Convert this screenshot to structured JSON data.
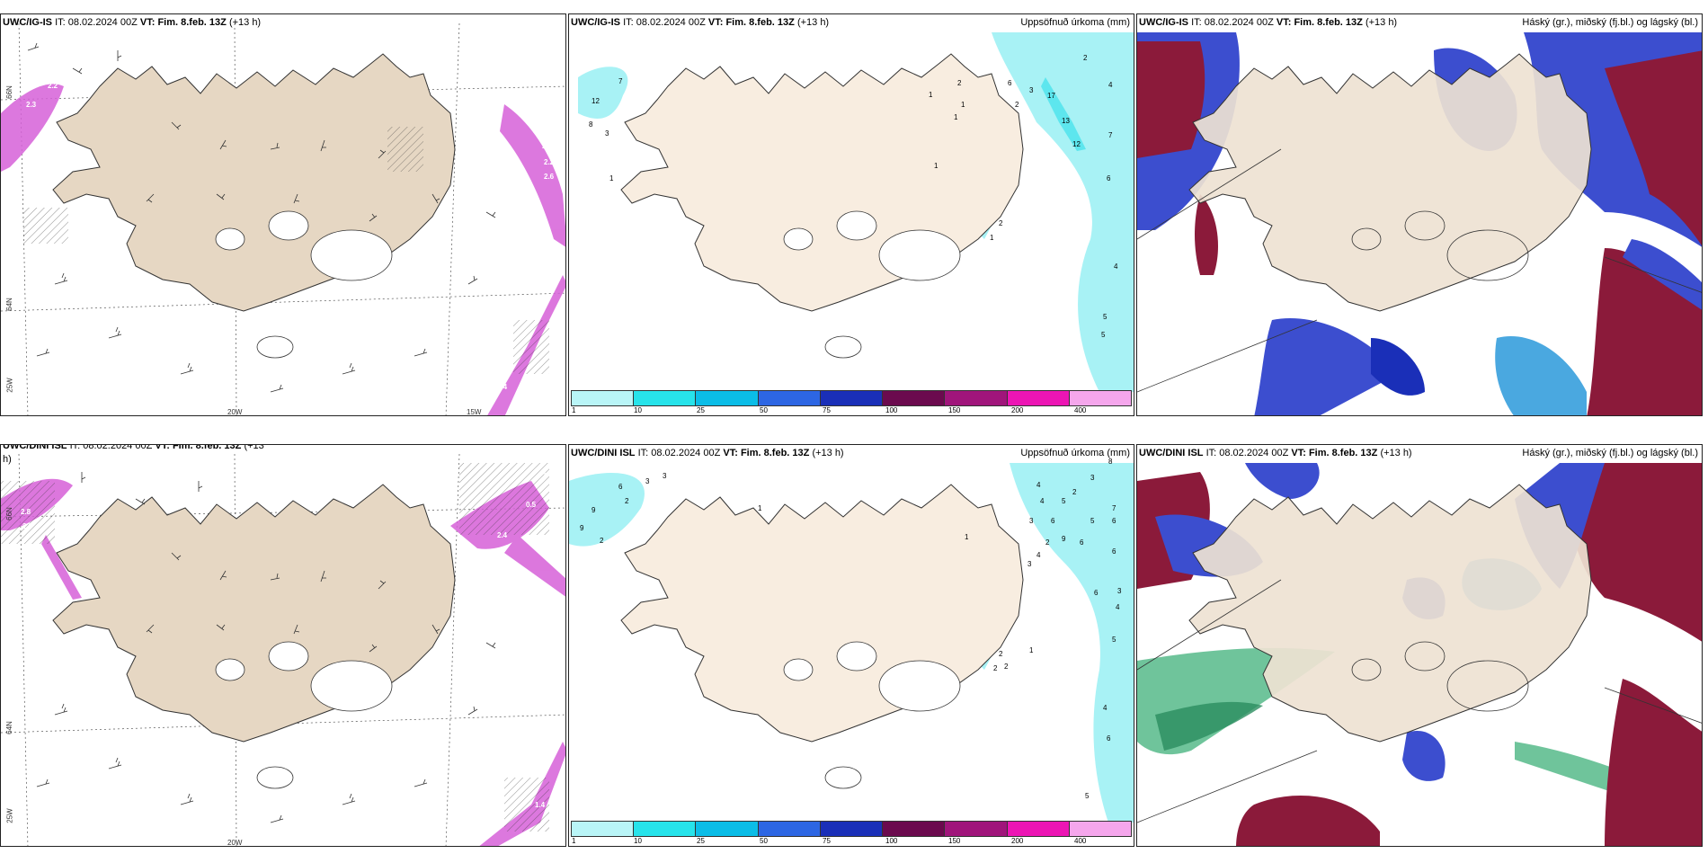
{
  "colors": {
    "land": "#eee2d2",
    "land_alt": "#f8ede0",
    "coast": "#333333",
    "precip_light": "#a8f2f5",
    "precip_mid": "#5de6ee",
    "snow": "#d660d8",
    "cloud_high": "#8b1a3a",
    "cloud_mid": "#3c4ecf",
    "cloud_low": "#4aa8e0",
    "fog_green": "#3fb07a"
  },
  "colorbar": {
    "colors": [
      "#b9f5f7",
      "#27e3ea",
      "#0bbde7",
      "#2d66e3",
      "#1a2fb8",
      "#6b0a4e",
      "#a0157b",
      "#ec15b4",
      "#f5a6ec"
    ],
    "ticks": [
      "1",
      "10",
      "25",
      "50",
      "75",
      "100",
      "150",
      "200",
      "400"
    ]
  },
  "panels": [
    {
      "model": "UWC/IG-IS",
      "it_label": "IT:",
      "it_value": "08.02.2024 00Z",
      "vt_label": "VT:",
      "vt_value": "Fim. 8.feb. 13Z",
      "lead": "(+13 h)",
      "right_title": "",
      "axis_labels": [
        "66N",
        "64N",
        "25W",
        "20W",
        "15W"
      ],
      "numbers": [
        "2.2",
        "2.3",
        "2.0",
        "2.2",
        "2.6",
        "2.4",
        "1.3"
      ]
    },
    {
      "model": "UWC/IG-IS",
      "it_label": "IT:",
      "it_value": "08.02.2024 00Z",
      "vt_label": "VT:",
      "vt_value": "Fim. 8.feb. 13Z",
      "lead": "(+13 h)",
      "right_title": "Uppsöfnuð úrkoma (mm)",
      "numbers": [
        "7",
        "12",
        "8",
        "3",
        "1",
        "2",
        "1",
        "1",
        "1",
        "6",
        "2",
        "3",
        "17",
        "13",
        "12",
        "2",
        "4",
        "7",
        "6",
        "1",
        "2",
        "1",
        "4",
        "5",
        "5"
      ]
    },
    {
      "model": "UWC/IG-IS",
      "it_label": "IT:",
      "it_value": "08.02.2024 00Z",
      "vt_label": "VT:",
      "vt_value": "Fim. 8.feb. 13Z",
      "lead": "(+13 h)",
      "right_title": "Háský (gr.), miðský (fj.bl.) og lágský (bl.)"
    },
    {
      "model": "UWC/DINI ISL",
      "it_label": "IT:",
      "it_value": "08.02.2024 00Z",
      "vt_label": "VT:",
      "vt_value": "Fim. 8.feb. 13Z",
      "lead": "(+13",
      "lead_wrap": "h)",
      "right_title": "",
      "axis_labels": [
        "66N",
        "64N",
        "25W",
        "20W"
      ],
      "numbers": [
        "2.8",
        "2.8",
        "2.4",
        "0.5",
        "3",
        "1.4"
      ]
    },
    {
      "model": "UWC/DINI ISL",
      "it_label": "IT:",
      "it_value": "08.02.2024 00Z",
      "vt_label": "VT:",
      "vt_value": "Fim. 8.feb. 13Z",
      "lead": "(+13 h)",
      "right_title": "Uppsöfnuð úrkoma (mm)",
      "numbers": [
        "6",
        "3",
        "3",
        "9",
        "2",
        "9",
        "2",
        "1",
        "8",
        "3",
        "4",
        "4",
        "2",
        "5",
        "7",
        "6",
        "3",
        "5",
        "6",
        "2",
        "9",
        "6",
        "4",
        "3",
        "6",
        "1",
        "6",
        "3",
        "4",
        "2",
        "1",
        "2",
        "2",
        "5",
        "4",
        "6",
        "5"
      ]
    },
    {
      "model": "UWC/DINI ISL",
      "it_label": "IT:",
      "it_value": "08.02.2024 00Z",
      "vt_label": "VT:",
      "vt_value": "Fim. 8.feb. 13Z",
      "lead": "(+13 h)",
      "right_title": "Háský (gr.), miðský (fj.bl.) og lágský (bl.)"
    }
  ]
}
